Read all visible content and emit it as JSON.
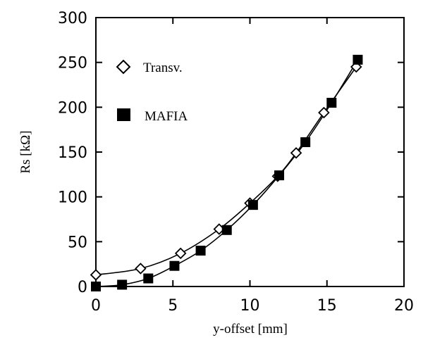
{
  "chart_data": {
    "type": "line",
    "xlabel": "y-offset [mm]",
    "ylabel": "Rs [kΩ]",
    "xlim": [
      0,
      20
    ],
    "ylim": [
      0,
      300
    ],
    "x_ticks": [
      "0",
      "5",
      "10",
      "15",
      "20"
    ],
    "y_ticks": [
      "0",
      "50",
      "100",
      "150",
      "200",
      "250",
      "300"
    ],
    "grid": false,
    "legend_position": "top-left",
    "series": [
      {
        "name": "Transv.",
        "marker": "open-diamond",
        "color": "#000000",
        "points": [
          {
            "x": 0.0,
            "y": 13
          },
          {
            "x": 2.9,
            "y": 20
          },
          {
            "x": 5.5,
            "y": 37
          },
          {
            "x": 8.0,
            "y": 64
          },
          {
            "x": 10.0,
            "y": 93
          },
          {
            "x": 11.8,
            "y": 123
          },
          {
            "x": 13.0,
            "y": 149
          },
          {
            "x": 14.8,
            "y": 194
          },
          {
            "x": 16.9,
            "y": 245
          }
        ]
      },
      {
        "name": "MAFIA",
        "marker": "filled-square",
        "color": "#000000",
        "points": [
          {
            "x": 0.0,
            "y": 0
          },
          {
            "x": 1.7,
            "y": 2
          },
          {
            "x": 3.4,
            "y": 9
          },
          {
            "x": 5.1,
            "y": 23
          },
          {
            "x": 6.8,
            "y": 40
          },
          {
            "x": 8.5,
            "y": 63
          },
          {
            "x": 10.2,
            "y": 91
          },
          {
            "x": 11.9,
            "y": 124
          },
          {
            "x": 13.6,
            "y": 161
          },
          {
            "x": 15.3,
            "y": 205
          },
          {
            "x": 17.0,
            "y": 253
          }
        ]
      }
    ]
  }
}
